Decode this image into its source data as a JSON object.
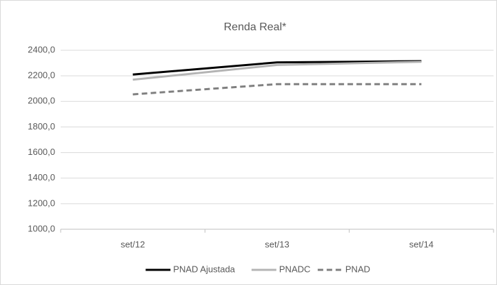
{
  "chart_data": {
    "type": "line",
    "title": "Renda Real*",
    "categories": [
      "set/12",
      "set/13",
      "set/14"
    ],
    "series": [
      {
        "name": "PNAD Ajustada",
        "color": "#000000",
        "line_style": "solid",
        "values": [
          2210,
          2305,
          2315
        ]
      },
      {
        "name": "PNADC",
        "color": "#b4b4b4",
        "line_style": "solid",
        "values": [
          2170,
          2285,
          2310
        ]
      },
      {
        "name": "PNAD",
        "color": "#7f7f7f",
        "line_style": "dashed",
        "values": [
          2055,
          2135,
          2135
        ]
      }
    ],
    "ylim": [
      1000,
      2400
    ],
    "yticks": [
      {
        "value": 1000,
        "label": "1000,0"
      },
      {
        "value": 1200,
        "label": "1200,0"
      },
      {
        "value": 1400,
        "label": "1400,0"
      },
      {
        "value": 1600,
        "label": "1600,0"
      },
      {
        "value": 1800,
        "label": "1800,0"
      },
      {
        "value": 2000,
        "label": "2000,0"
      },
      {
        "value": 2200,
        "label": "2200,0"
      },
      {
        "value": 2400,
        "label": "2400,0"
      }
    ],
    "grid": true,
    "legend": "bottom"
  }
}
